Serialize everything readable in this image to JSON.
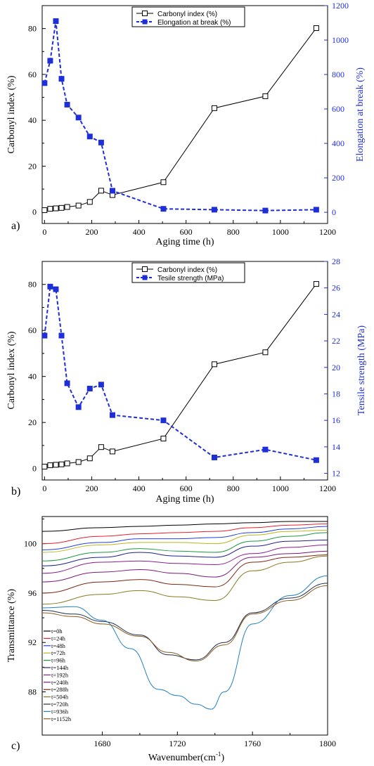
{
  "chart_data": [
    {
      "panel_label": "a)",
      "type": "line",
      "xlabel": "Aging time (h)",
      "ylabel": "Carbonyl index (%)",
      "ylabel_right": "Elongation at break (%)",
      "xlim": [
        -10,
        1200
      ],
      "ylim": [
        -5,
        90
      ],
      "ylim_right": [
        -65,
        1200
      ],
      "x_ticks": [
        "0",
        "200",
        "400",
        "600",
        "800",
        "1000",
        "1200"
      ],
      "y_ticks": [
        "0",
        "20",
        "40",
        "60",
        "80"
      ],
      "y_ticks_right": [
        "0",
        "200",
        "400",
        "600",
        "800",
        "1000",
        "1200"
      ],
      "legend_position": "top-center",
      "series": [
        {
          "name": "Carbonyl index (%)",
          "axis": "left",
          "style": "solid",
          "color": "#000000",
          "marker": "open-square",
          "x": [
            0,
            24,
            48,
            72,
            96,
            144,
            192,
            240,
            288,
            504,
            720,
            936,
            1152
          ],
          "y": [
            0.8,
            1.4,
            1.6,
            1.8,
            2.2,
            2.8,
            4.4,
            9.3,
            7.4,
            13,
            45.3,
            50.5,
            80.2
          ]
        },
        {
          "name": "Elongation at break (%)",
          "axis": "right",
          "style": "dashed",
          "color": "#1f2fd6",
          "marker": "filled-square",
          "x": [
            0,
            24,
            48,
            72,
            96,
            144,
            192,
            240,
            288,
            504,
            720,
            936,
            1152
          ],
          "y": [
            750,
            880,
            1110,
            775,
            625,
            550,
            440,
            405,
            125,
            20,
            15,
            10,
            15
          ]
        }
      ]
    },
    {
      "panel_label": "b)",
      "type": "line",
      "xlabel": "Aging time (h)",
      "ylabel": "Carbonyl index (%)",
      "ylabel_right": "Tensile strength (MPa)",
      "xlim": [
        -10,
        1200
      ],
      "ylim": [
        -5,
        90
      ],
      "ylim_right": [
        11.5,
        28
      ],
      "x_ticks": [
        "0",
        "200",
        "400",
        "600",
        "800",
        "1000",
        "1200"
      ],
      "y_ticks": [
        "0",
        "20",
        "40",
        "60",
        "80"
      ],
      "y_ticks_right": [
        "12",
        "14",
        "16",
        "18",
        "20",
        "22",
        "24",
        "26",
        "28"
      ],
      "legend_position": "top-center",
      "series": [
        {
          "name": "Carbonyl index (%)",
          "axis": "left",
          "style": "solid",
          "color": "#000000",
          "marker": "open-square",
          "x": [
            0,
            24,
            48,
            72,
            96,
            144,
            192,
            240,
            288,
            504,
            720,
            936,
            1152
          ],
          "y": [
            0.8,
            1.4,
            1.6,
            1.8,
            2.2,
            2.8,
            4.4,
            9.3,
            7.4,
            13,
            45.3,
            50.5,
            80.2
          ]
        },
        {
          "name": "Tesile strength (MPa)",
          "axis": "right",
          "style": "dashed",
          "color": "#1f2fd6",
          "marker": "filled-square",
          "x": [
            0,
            24,
            48,
            72,
            96,
            144,
            192,
            240,
            288,
            504,
            720,
            936,
            1152
          ],
          "y": [
            22.4,
            26.1,
            25.9,
            22.4,
            18.8,
            17.0,
            18.4,
            18.7,
            16.4,
            16.0,
            13.2,
            13.8,
            13.0
          ]
        }
      ]
    },
    {
      "panel_label": "c)",
      "type": "line",
      "xlabel": "Wavenumber(cm",
      "xlabel_superscript": "-1",
      "xlabel_close": ")",
      "ylabel": "Transmittance (%)",
      "xlim": [
        1648,
        1800
      ],
      "ylim": [
        84.5,
        102.2
      ],
      "x_ticks": [
        "1680",
        "1720",
        "1760",
        "1800"
      ],
      "y_ticks": [
        "88",
        "92",
        "96",
        "100"
      ],
      "legend_position": "left-lower",
      "series": [
        {
          "name": "t=0h",
          "color": "#000000",
          "x": [
            1648,
            1680,
            1700,
            1720,
            1740,
            1760,
            1780,
            1800
          ],
          "y": [
            101.0,
            101.3,
            101.4,
            101.5,
            101.6,
            101.7,
            101.8,
            101.8
          ]
        },
        {
          "name": "t=24h",
          "color": "#e8202a",
          "x": [
            1648,
            1680,
            1700,
            1720,
            1740,
            1760,
            1780,
            1800
          ],
          "y": [
            100.0,
            100.6,
            100.8,
            100.9,
            101.0,
            101.3,
            101.5,
            101.6
          ]
        },
        {
          "name": "t=48h",
          "color": "#2040e0",
          "x": [
            1648,
            1680,
            1700,
            1720,
            1740,
            1760,
            1780,
            1800
          ],
          "y": [
            99.5,
            100.1,
            100.4,
            100.4,
            100.5,
            100.9,
            101.2,
            101.4
          ]
        },
        {
          "name": "t=72h",
          "color": "#b8b820",
          "x": [
            1648,
            1680,
            1700,
            1720,
            1740,
            1760,
            1780,
            1800
          ],
          "y": [
            99.3,
            99.9,
            100.1,
            100.1,
            100.0,
            100.7,
            101.0,
            101.1
          ]
        },
        {
          "name": "t=96h",
          "color": "#1a9a40",
          "x": [
            1648,
            1680,
            1700,
            1720,
            1740,
            1760,
            1780,
            1800
          ],
          "y": [
            98.6,
            99.3,
            99.6,
            99.4,
            99.3,
            100.2,
            100.6,
            100.9
          ]
        },
        {
          "name": "t=144h",
          "color": "#20208a",
          "x": [
            1648,
            1680,
            1700,
            1720,
            1740,
            1760,
            1780,
            1800
          ],
          "y": [
            98.2,
            98.9,
            99.3,
            99.0,
            98.9,
            99.8,
            100.2,
            100.3
          ]
        },
        {
          "name": "t=192h",
          "color": "#8a2090",
          "x": [
            1648,
            1680,
            1700,
            1720,
            1740,
            1760,
            1780,
            1800
          ],
          "y": [
            97.6,
            98.5,
            98.6,
            98.4,
            98.3,
            99.2,
            99.7,
            99.9
          ]
        },
        {
          "name": "t=240h",
          "color": "#7a1a7a",
          "x": [
            1648,
            1680,
            1700,
            1720,
            1740,
            1760,
            1780,
            1800
          ],
          "y": [
            96.9,
            97.7,
            97.9,
            97.6,
            97.3,
            98.9,
            99.2,
            99.4
          ]
        },
        {
          "name": "t=288h",
          "color": "#7a2a10",
          "x": [
            1648,
            1680,
            1700,
            1720,
            1740,
            1760,
            1780,
            1800
          ],
          "y": [
            96.0,
            96.9,
            97.1,
            96.7,
            96.5,
            98.5,
            98.9,
            99.1
          ]
        },
        {
          "name": "t=504h",
          "color": "#8a7a20",
          "x": [
            1648,
            1680,
            1700,
            1720,
            1740,
            1760,
            1780,
            1800
          ],
          "y": [
            95.1,
            95.9,
            96.2,
            95.7,
            95.4,
            97.8,
            98.5,
            99.0
          ]
        },
        {
          "name": "t=720h",
          "color": "#20304a",
          "x": [
            1648,
            1665,
            1680,
            1700,
            1715,
            1730,
            1745,
            1760,
            1780,
            1800
          ],
          "y": [
            94.6,
            94.3,
            93.7,
            92.6,
            91.0,
            90.6,
            92.0,
            94.4,
            95.6,
            96.8
          ]
        },
        {
          "name": "t=936h",
          "color": "#2080c0",
          "x": [
            1648,
            1665,
            1680,
            1695,
            1710,
            1720,
            1730,
            1738,
            1745,
            1760,
            1780,
            1800
          ],
          "y": [
            94.8,
            94.9,
            93.8,
            91.5,
            88.2,
            87.7,
            87.0,
            86.6,
            88.0,
            93.5,
            95.8,
            97.4
          ]
        },
        {
          "name": "t=1152h",
          "color": "#8a5a20",
          "x": [
            1648,
            1665,
            1680,
            1700,
            1715,
            1730,
            1745,
            1760,
            1780,
            1800
          ],
          "y": [
            94.4,
            94.1,
            93.5,
            92.5,
            91.2,
            90.5,
            91.8,
            94.3,
            95.4,
            96.6
          ]
        }
      ]
    }
  ]
}
